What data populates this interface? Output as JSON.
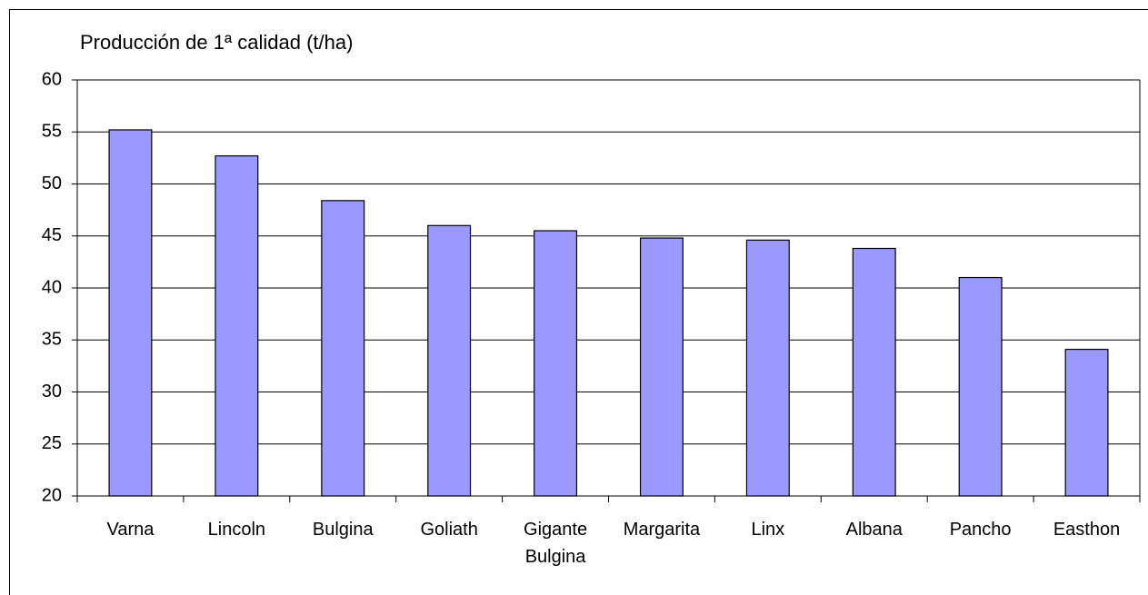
{
  "chart_data": {
    "type": "bar",
    "title": "Producción de 1ª calidad (t/ha)",
    "categories": [
      "Varna",
      "Lincoln",
      "Bulgina",
      "Goliath",
      "Gigante Bulgina",
      "Margarita",
      "Linx",
      "Albana",
      "Pancho",
      "Easthon"
    ],
    "values": [
      55.2,
      52.7,
      48.4,
      46.0,
      45.5,
      44.8,
      44.6,
      43.8,
      41.0,
      34.1
    ],
    "color": "#9999ff",
    "ylim": [
      20,
      60
    ],
    "yticks": [
      20,
      25,
      30,
      35,
      40,
      45,
      50,
      55,
      60
    ],
    "grid": true
  }
}
